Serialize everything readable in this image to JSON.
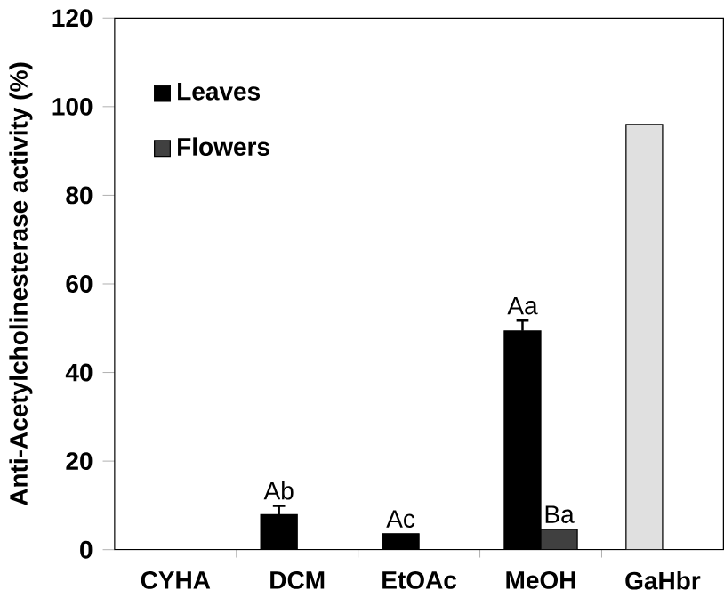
{
  "chart_data": {
    "type": "bar",
    "ylabel": "Anti-Acetylcholinesterase activity (%)",
    "categories": [
      "CYHA",
      "DCM",
      "EtOAc",
      "MeOH",
      "GaHbr"
    ],
    "series": [
      {
        "name": "Leaves",
        "color": "#000000",
        "values": [
          null,
          7.9,
          3.6,
          49.4,
          null
        ],
        "errors": [
          null,
          2.0,
          null,
          2.3,
          null
        ]
      },
      {
        "name": "Flowers",
        "color": "#404040",
        "values": [
          null,
          null,
          null,
          4.6,
          null
        ]
      },
      {
        "color": "#e0e0e0",
        "values": [
          null,
          null,
          null,
          null,
          96.0
        ]
      }
    ],
    "ylim": [
      0,
      120
    ],
    "yticks": [
      0,
      20,
      40,
      60,
      80,
      100,
      120
    ],
    "annotations": [
      {
        "text": "Ab",
        "x": "DCM",
        "y": 7.9
      },
      {
        "text": "Ac",
        "x": "EtOAc",
        "y": 3.6
      },
      {
        "text": "Aa",
        "x": "MeOH",
        "y": 49.4
      },
      {
        "text": "Ba",
        "x": "MeOH",
        "y": 4.6
      }
    ],
    "legend": "top left",
    "grid": false
  }
}
